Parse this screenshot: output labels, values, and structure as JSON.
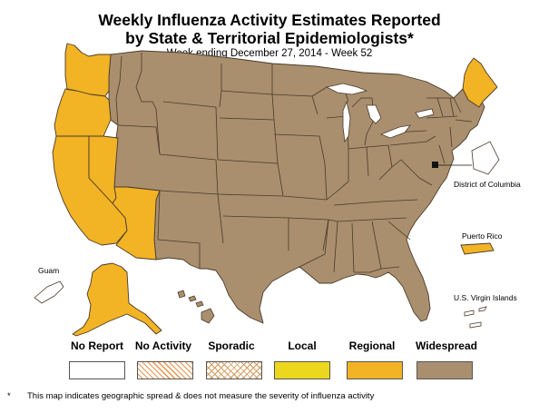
{
  "title_line1": "Weekly Influenza Activity Estimates Reported",
  "title_line2": "by State & Territorial Epidemiologists*",
  "subtitle": "Week ending December 27, 2014 - Week 52",
  "territories": {
    "dc": "District of Columbia",
    "pr": "Puerto Rico",
    "guam": "Guam",
    "vi": "U.S. Virgin Islands"
  },
  "colors": {
    "widespread": "#a98f6e",
    "regional": "#f2b325",
    "local": "#ebd81e",
    "sporadic_hatch": "#d09a5a",
    "no_activity_hatch": "#e8924a",
    "border": "#4a3a2a"
  },
  "legend": [
    {
      "key": "no_report",
      "label": "No Report",
      "fill": "#ffffff"
    },
    {
      "key": "no_activity",
      "label": "No Activity",
      "fill": "hatch-orange"
    },
    {
      "key": "sporadic",
      "label": "Sporadic",
      "fill": "crosshatch-tan"
    },
    {
      "key": "local",
      "label": "Local",
      "fill": "#ebd81e"
    },
    {
      "key": "regional",
      "label": "Regional",
      "fill": "#f2b325"
    },
    {
      "key": "widespread",
      "label": "Widespread",
      "fill": "#a98f6e"
    }
  ],
  "activity": {
    "regional": [
      "Washington",
      "Oregon",
      "California",
      "Nevada",
      "Arizona",
      "Maine",
      "Alaska",
      "Puerto Rico"
    ],
    "widespread": [
      "Idaho",
      "Montana",
      "Wyoming",
      "Utah",
      "Colorado",
      "New Mexico",
      "North Dakota",
      "South Dakota",
      "Nebraska",
      "Kansas",
      "Oklahoma",
      "Texas",
      "Minnesota",
      "Iowa",
      "Missouri",
      "Arkansas",
      "Louisiana",
      "Wisconsin",
      "Illinois",
      "Michigan",
      "Indiana",
      "Ohio",
      "Kentucky",
      "Tennessee",
      "Mississippi",
      "Alabama",
      "Georgia",
      "Florida",
      "South Carolina",
      "North Carolina",
      "Virginia",
      "West Virginia",
      "Pennsylvania",
      "New York",
      "Vermont",
      "New Hampshire",
      "Massachusetts",
      "Connecticut",
      "Rhode Island",
      "New Jersey",
      "Delaware",
      "Maryland",
      "Hawaii"
    ],
    "no_report": [
      "District of Columbia",
      "Guam",
      "U.S. Virgin Islands"
    ]
  },
  "footnote_marker": "*",
  "footnote": "This map indicates geographic spread & does not measure the severity of influenza activity"
}
